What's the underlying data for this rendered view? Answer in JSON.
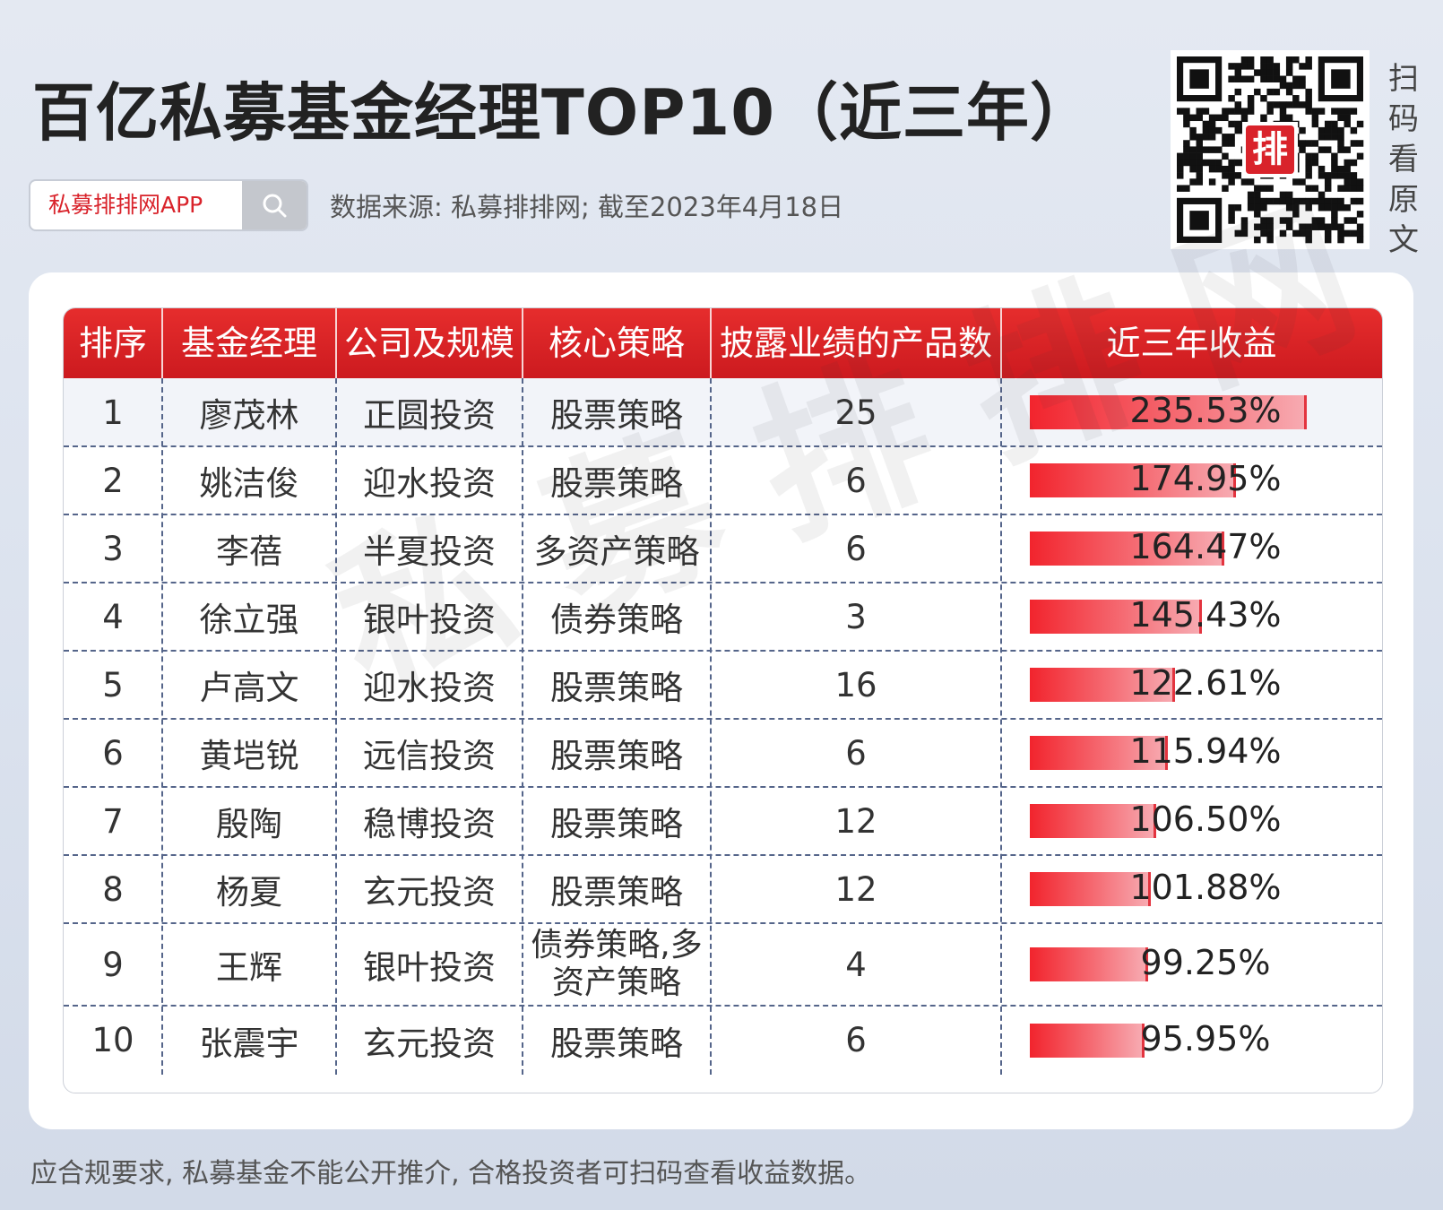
{
  "title": "百亿私募基金经理TOP10（近三年）",
  "search": {
    "text": "私募排排网APP"
  },
  "source": "数据来源: 私募排排网; 截至2023年4月18日",
  "qr_logo_text": "排",
  "side_text": "扫码看原文",
  "watermark": "私募排排网",
  "footer": "应合规要求, 私募基金不能公开推介, 合格投资者可扫码查看收益数据。",
  "colors": {
    "header_red": "#d9232b",
    "bar_red": "#f2242d",
    "bar_pink": "#f7aab1"
  },
  "chart_data": {
    "type": "table",
    "columns": [
      "排序",
      "基金经理",
      "公司及规模",
      "核心策略",
      "披露业绩的产品数",
      "近三年收益"
    ],
    "rows": [
      {
        "rank": "1",
        "manager": "廖茂林",
        "company": "正圆投资",
        "strategy": "股票策略",
        "products": "25",
        "return_label": "235.53%",
        "return": 235.53
      },
      {
        "rank": "2",
        "manager": "姚洁俊",
        "company": "迎水投资",
        "strategy": "股票策略",
        "products": "6",
        "return_label": "174.95%",
        "return": 174.95
      },
      {
        "rank": "3",
        "manager": "李蓓",
        "company": "半夏投资",
        "strategy": "多资产策略",
        "products": "6",
        "return_label": "164.47%",
        "return": 164.47
      },
      {
        "rank": "4",
        "manager": "徐立强",
        "company": "银叶投资",
        "strategy": "债券策略",
        "products": "3",
        "return_label": "145.43%",
        "return": 145.43
      },
      {
        "rank": "5",
        "manager": "卢高文",
        "company": "迎水投资",
        "strategy": "股票策略",
        "products": "16",
        "return_label": "122.61%",
        "return": 122.61
      },
      {
        "rank": "6",
        "manager": "黄垲锐",
        "company": "远信投资",
        "strategy": "股票策略",
        "products": "6",
        "return_label": "115.94%",
        "return": 115.94
      },
      {
        "rank": "7",
        "manager": "殷陶",
        "company": "稳博投资",
        "strategy": "股票策略",
        "products": "12",
        "return_label": "106.50%",
        "return": 106.5
      },
      {
        "rank": "8",
        "manager": "杨夏",
        "company": "玄元投资",
        "strategy": "股票策略",
        "products": "12",
        "return_label": "101.88%",
        "return": 101.88
      },
      {
        "rank": "9",
        "manager": "王辉",
        "company": "银叶投资",
        "strategy": "债券策略,多资产策略",
        "products": "4",
        "return_label": "99.25%",
        "return": 99.25
      },
      {
        "rank": "10",
        "manager": "张震宇",
        "company": "玄元投资",
        "strategy": "股票策略",
        "products": "6",
        "return_label": "95.95%",
        "return": 95.95
      }
    ]
  }
}
